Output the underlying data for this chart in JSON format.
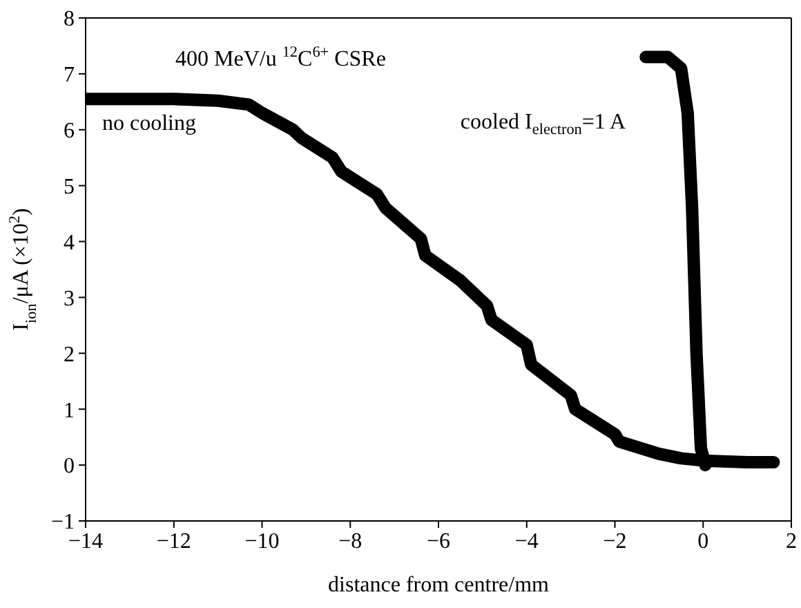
{
  "chart_data": {
    "type": "line",
    "xlabel": "distance from centre/mm",
    "ylabel": "I$_{ion}$/μA (×10$^{2}$)",
    "annotations": [
      "400 MeV/u $^{12}$C$^{6+}$ CSRe"
    ],
    "xlim": [
      -14,
      2
    ],
    "xticks": [
      -14,
      -12,
      -10,
      -8,
      -6,
      -4,
      -2,
      0,
      2
    ],
    "ylim": [
      -1,
      8
    ],
    "yticks": [
      -1,
      0,
      1,
      2,
      3,
      4,
      5,
      6,
      7,
      8
    ],
    "legend": false,
    "marker": "none",
    "line_style": "solid",
    "series": [
      {
        "name": "no cooling",
        "color": "#000000",
        "x": [
          -14,
          -12,
          -11,
          -10.3,
          -10,
          -9.3,
          -9.1,
          -8.4,
          -8.2,
          -7.4,
          -7.2,
          -6.4,
          -6.3,
          -5.5,
          -4.9,
          -4.8,
          -4,
          -3.9,
          -3,
          -2.9,
          -2,
          -1.9,
          -1,
          -0.5,
          0,
          1,
          1.6
        ],
        "values": [
          6.55,
          6.55,
          6.52,
          6.45,
          6.3,
          6.0,
          5.85,
          5.5,
          5.25,
          4.85,
          4.6,
          4.05,
          3.75,
          3.3,
          2.85,
          2.6,
          2.15,
          1.8,
          1.25,
          1.0,
          0.55,
          0.42,
          0.2,
          0.12,
          0.08,
          0.05,
          0.05
        ]
      },
      {
        "name": "cooled I$_{electron}$=1 A",
        "color": "#000000",
        "x": [
          -1.3,
          -0.8,
          -0.5,
          -0.35,
          -0.25,
          -0.15,
          -0.05,
          0.05
        ],
        "values": [
          7.3,
          7.3,
          7.1,
          6.3,
          4.6,
          2.0,
          0.3,
          0.0
        ]
      }
    ]
  }
}
